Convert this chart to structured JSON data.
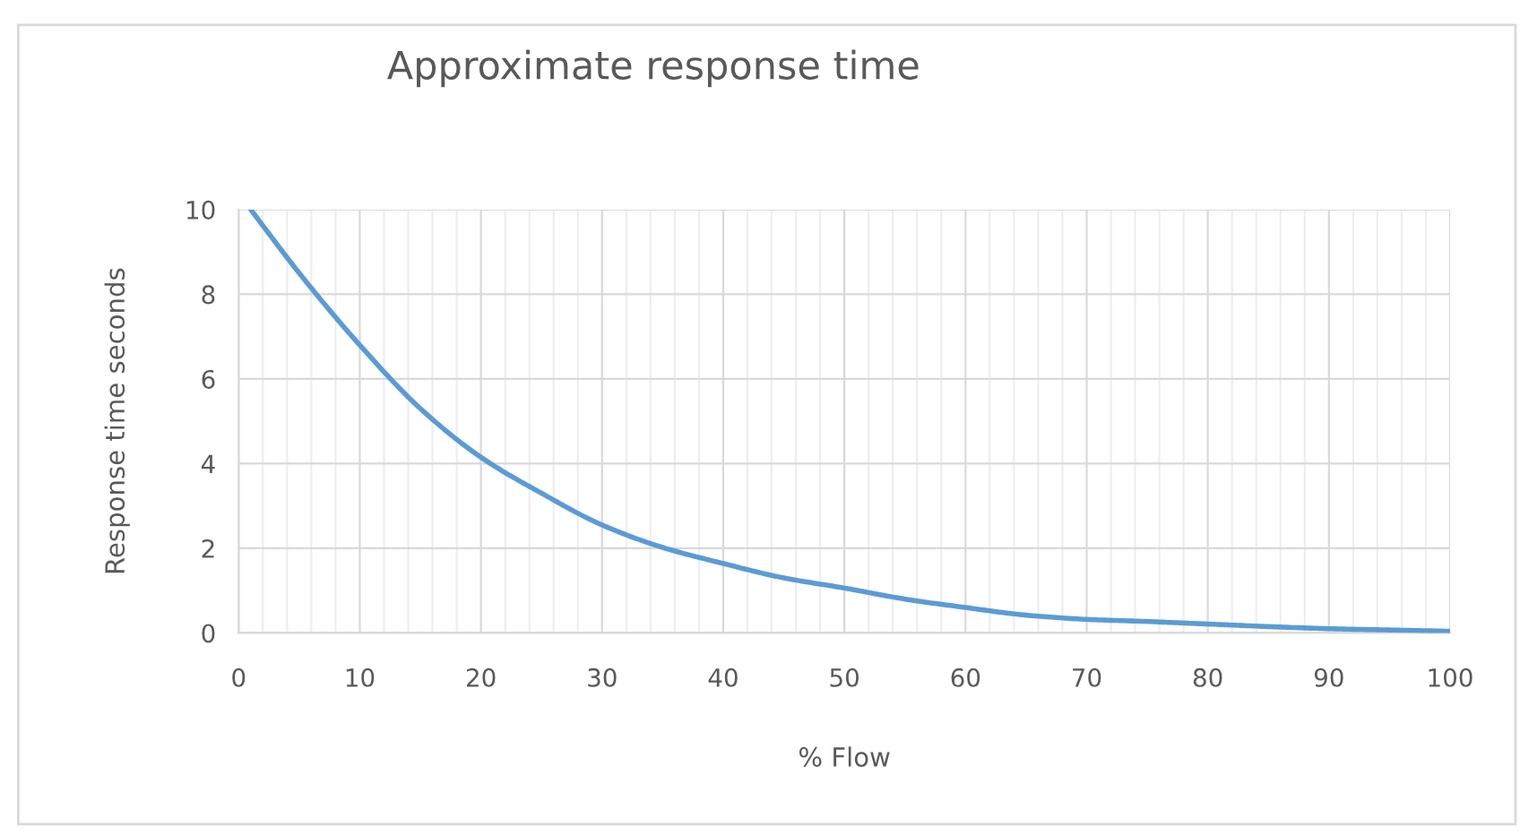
{
  "chart_data": {
    "type": "line",
    "title": "Approximate response time",
    "xlabel": "% Flow",
    "ylabel": "Response time seconds",
    "x": [
      1,
      5,
      10,
      15,
      20,
      25,
      30,
      35,
      40,
      45,
      50,
      55,
      60,
      65,
      70,
      75,
      80,
      85,
      90,
      95,
      100
    ],
    "series": [
      {
        "color": "#5b9bd5",
        "values": [
          10,
          8.5,
          6.8,
          5.3,
          4.15,
          3.3,
          2.55,
          2.02,
          1.64,
          1.3,
          1.06,
          0.8,
          0.6,
          0.42,
          0.32,
          0.27,
          0.21,
          0.15,
          0.1,
          0.07,
          0.04
        ]
      }
    ],
    "xlim": [
      0,
      100
    ],
    "ylim": [
      0,
      10
    ],
    "xticks": [
      0,
      {
        "value": 2,
        "label": null
      },
      {
        "value": 4,
        "label": null
      },
      {
        "value": 6,
        "label": null
      },
      {
        "value": 8,
        "label": null
      },
      10,
      {
        "value": 12,
        "label": null
      },
      {
        "value": 14,
        "label": null
      },
      {
        "value": 16,
        "label": null
      },
      {
        "value": 18,
        "label": null
      },
      20,
      {
        "value": 22,
        "label": null
      },
      {
        "value": 24,
        "label": null
      },
      {
        "value": 26,
        "label": null
      },
      {
        "value": 28,
        "label": null
      },
      30,
      {
        "value": 32,
        "label": null
      },
      {
        "value": 34,
        "label": null
      },
      {
        "value": 36,
        "label": null
      },
      {
        "value": 38,
        "label": null
      },
      40,
      {
        "value": 42,
        "label": null
      },
      {
        "value": 44,
        "label": null
      },
      {
        "value": 46,
        "label": null
      },
      {
        "value": 48,
        "label": null
      },
      50,
      {
        "value": 52,
        "label": null
      },
      {
        "value": 54,
        "label": null
      },
      {
        "value": 56,
        "label": null
      },
      {
        "value": 58,
        "label": null
      },
      60,
      {
        "value": 62,
        "label": null
      },
      {
        "value": 64,
        "label": null
      },
      {
        "value": 66,
        "label": null
      },
      {
        "value": 68,
        "label": null
      },
      70,
      {
        "value": 72,
        "label": null
      },
      {
        "value": 74,
        "label": null
      },
      {
        "value": 76,
        "label": null
      },
      {
        "value": 78,
        "label": null
      },
      80,
      {
        "value": 82,
        "label": null
      },
      {
        "value": 84,
        "label": null
      },
      {
        "value": 86,
        "label": null
      },
      {
        "value": 88,
        "label": null
      },
      90,
      {
        "value": 92,
        "label": null
      },
      {
        "value": 94,
        "label": null
      },
      {
        "value": 96,
        "label": null
      },
      {
        "value": 98,
        "label": null
      },
      100
    ],
    "yticks": [
      0,
      2,
      4,
      6,
      8,
      10
    ],
    "grid": true,
    "marker": "none",
    "line_style": "solid"
  }
}
